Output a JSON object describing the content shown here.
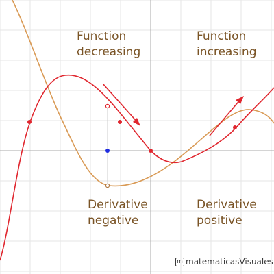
{
  "labels": {
    "function_decreasing": "Function\ndecreasing",
    "function_increasing": "Function\nincreasing",
    "derivative_negative": "Derivative\nnegative",
    "derivative_positive": "Derivative\npositive"
  },
  "watermark": {
    "icon": "m-logo-icon",
    "text": "matematicasVisuales"
  },
  "colors": {
    "function_curve": "#e0262e",
    "derivative_curve": "#d99a55",
    "text": "#7a5426",
    "grid": "#e6e6e6",
    "axis": "#b0b0b0",
    "point_blue": "#1f2de0"
  }
}
